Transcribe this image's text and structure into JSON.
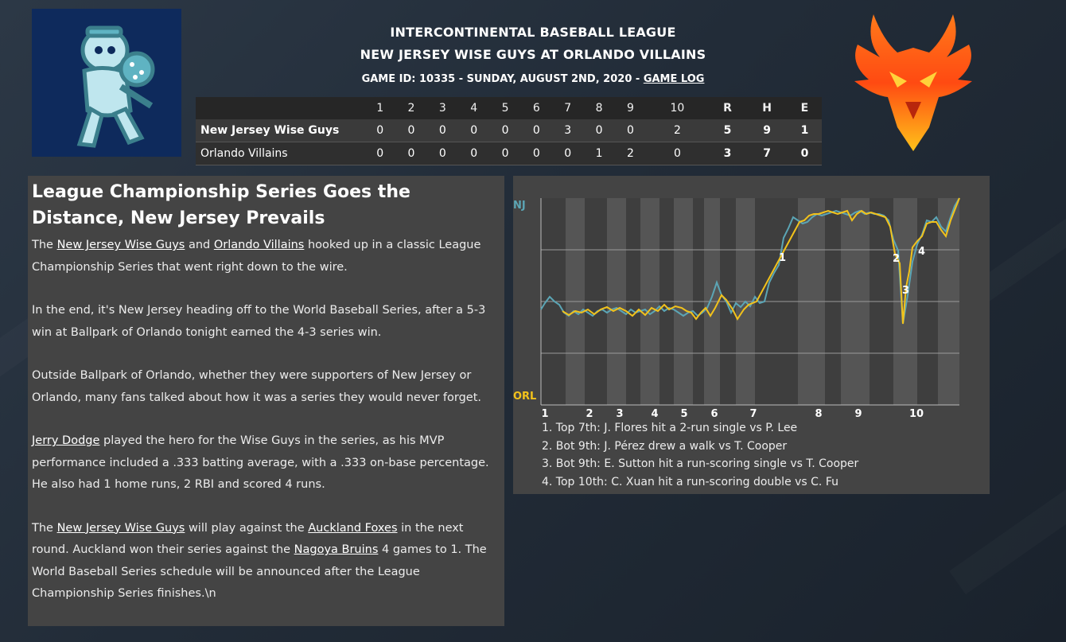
{
  "header": {
    "league": "INTERCONTINENTAL BASEBALL LEAGUE",
    "matchup": "NEW JERSEY WISE GUYS AT ORLANDO VILLAINS",
    "game_info": "GAME ID: 10335 - SUNDAY, AUGUST 2ND, 2020 - ",
    "game_log_link": "GAME LOG"
  },
  "linescore": {
    "innings": [
      "1",
      "2",
      "3",
      "4",
      "5",
      "6",
      "7",
      "8",
      "9",
      "10"
    ],
    "totals_headers": [
      "R",
      "H",
      "E"
    ],
    "teams": [
      {
        "name": "New Jersey Wise Guys",
        "runs_by_inning": [
          "0",
          "0",
          "0",
          "0",
          "0",
          "0",
          "3",
          "0",
          "0",
          "2"
        ],
        "totals": [
          "5",
          "9",
          "1"
        ]
      },
      {
        "name": "Orlando Villains",
        "runs_by_inning": [
          "0",
          "0",
          "0",
          "0",
          "0",
          "0",
          "0",
          "1",
          "2",
          "0"
        ],
        "totals": [
          "3",
          "7",
          "0"
        ]
      }
    ]
  },
  "story": {
    "headline": "League Championship Series Goes the Distance, New Jersey Prevails",
    "p1": {
      "link1": "New Jersey Wise Guys",
      "t1": " and ",
      "link2": "Orlando Villains",
      "t2": " hooked up in a classic League Championship Series that went right down to the wire."
    },
    "p2": "In the end, it's New Jersey heading off to the World Baseball Series, after a 5-3 win at Ballpark of Orlando tonight earned the 4-3 series win.",
    "p3": "Outside Ballpark of Orlando, whether they were supporters of New Jersey or Orlando, many fans talked about how it was a series they would never forget.",
    "p4": {
      "link1": "Jerry Dodge",
      "t1": " played the hero for the Wise Guys in the series, as his MVP performance included a .333 batting average, with a .333 on-base percentage. He also had 1 home runs, 2 RBI and scored 4 runs."
    },
    "p5": {
      "t0": "The ",
      "link1": "New Jersey Wise Guys",
      "t1": " will play against the ",
      "link2": "Auckland Foxes",
      "t2": " in the next round. Auckland won their series against the ",
      "link3": "Nagoya Bruins",
      "t3": " 4 games to 1. The World Baseball Series schedule will be announced after the League Championship Series finishes.\\n"
    }
  },
  "win_prob": {
    "top_label": "NJ",
    "bottom_label": "ORL",
    "inning_labels": [
      "1",
      "2",
      "3",
      "4",
      "5",
      "6",
      "7",
      "8",
      "9",
      "10"
    ],
    "marker_labels": [
      "1",
      "2",
      "3",
      "4"
    ],
    "colors": {
      "nj": "#5ba5b5",
      "orl": "#f2c21b"
    },
    "events": [
      "1. Top 7th: J. Flores hit a 2-run single vs P. Lee",
      "2. Bot 9th: J. Pérez drew a walk vs T. Cooper",
      "3. Bot 9th: E. Sutton hit a run-scoring single vs T. Cooper",
      "4. Top 10th: C. Xuan hit a run-scoring double vs C. Fu"
    ]
  }
}
